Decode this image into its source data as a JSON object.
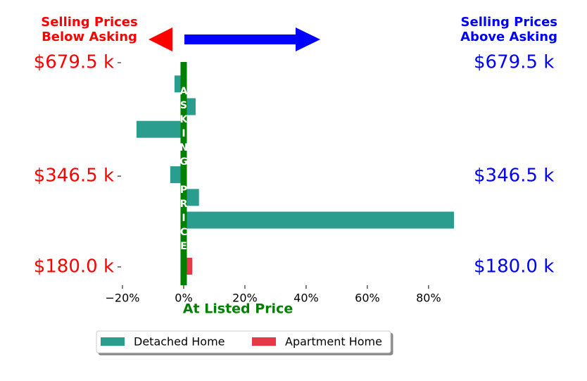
{
  "chart_data": {
    "type": "barh",
    "annotation_left": "Selling Prices\nBelow Asking",
    "annotation_right": "Selling Prices\nAbove Asking",
    "center_label": "ASKING PRICE",
    "xlabel": "At Listed Price",
    "categories": [
      "$679.5 k",
      null,
      null,
      null,
      null,
      "$346.5 k",
      null,
      null,
      null,
      "$180.0 k"
    ],
    "series": [
      {
        "name": "Detached Home",
        "color": "#2a9d8f",
        "values": [
          null,
          -3,
          3.9,
          -15.4,
          null,
          -4.4,
          5,
          88.3,
          null,
          null
        ]
      },
      {
        "name": "Apartment Home",
        "color": "#e63946",
        "values": [
          null,
          null,
          null,
          null,
          null,
          null,
          null,
          null,
          null,
          2.8
        ]
      }
    ],
    "xlim": [
      -20,
      88.3
    ],
    "xticks": [
      {
        "value": -20,
        "label": "−20%"
      },
      {
        "value": 0,
        "label": "0%"
      },
      {
        "value": 20,
        "label": "20%"
      },
      {
        "value": 40,
        "label": "40%"
      },
      {
        "value": 60,
        "label": "60%"
      },
      {
        "value": 80,
        "label": "80%"
      }
    ]
  }
}
